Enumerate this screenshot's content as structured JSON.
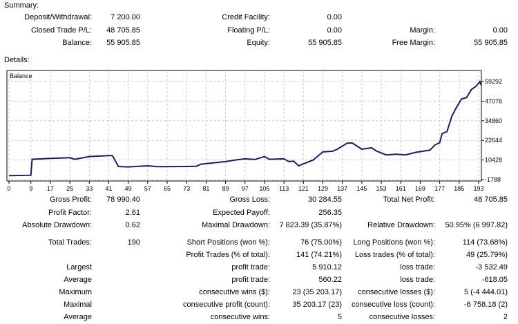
{
  "summary": {
    "title": "Summary:",
    "rows": [
      [
        "Deposit/Withdrawal:",
        "7 200.00",
        "Credit Facility:",
        "0.00",
        "",
        ""
      ],
      [
        "Closed Trade P/L:",
        "48 705.85",
        "Floating P/L:",
        "0.00",
        "Margin:",
        "0.00"
      ],
      [
        "Balance:",
        "55 905.85",
        "Equity:",
        "55 905.85",
        "Free Margin:",
        "55 905.85"
      ]
    ]
  },
  "details": {
    "title": "Details:",
    "rows": [
      [
        "Gross Profit:",
        "78 990.40",
        "Gross Loss:",
        "30 284.55",
        "Total Net Profit:",
        "48 705.85"
      ],
      [
        "Profit Factor:",
        "2.61",
        "Expected Payoff:",
        "256.35",
        "",
        ""
      ],
      [
        "Absolute Drawdown:",
        "0.62",
        "Maximal Drawdown:",
        "7 823.39 (35.87%)",
        "Relative Drawdown:",
        "50.95% (6 997.82)"
      ],
      [
        "Total Trades:",
        "190",
        "Short Positions (won %):",
        "76 (75.00%)",
        "Long Positions (won %):",
        "114 (73.68%)"
      ],
      [
        "",
        "",
        "Profit Trades (% of total):",
        "141 (74.21%)",
        "Loss trades (% of total):",
        "49 (25.79%)"
      ],
      [
        "Largest",
        "",
        "profit trade:",
        "5 910.12",
        "loss trade:",
        "-3 532.49"
      ],
      [
        "Average",
        "",
        "profit trade:",
        "560.22",
        "loss trade:",
        "-618.05"
      ],
      [
        "Maximum",
        "",
        "consecutive wins ($):",
        "23 (35 203.17)",
        "consecutive losses ($):",
        "5 (-4 444.01)"
      ],
      [
        "Maximal",
        "",
        "consecutive profit (count):",
        "35 203.17 (23)",
        "consecutive loss (count):",
        "-6 758.18 (2)"
      ],
      [
        "Average",
        "",
        "consecutive wins:",
        "5",
        "consecutive losses:",
        "2"
      ]
    ]
  },
  "chart_data": {
    "type": "line",
    "title": "Balance",
    "series": [
      {
        "name": "Balance",
        "color": "#1a1a66",
        "x": [
          0,
          9,
          9.5,
          17,
          25,
          27,
          33,
          41,
          42.5,
          45,
          49,
          57,
          61,
          73,
          77,
          79,
          89,
          93,
          97,
          101,
          105,
          107,
          113,
          115,
          117,
          119,
          125,
          129,
          133,
          135,
          139,
          141,
          145,
          149,
          151,
          155,
          159,
          163,
          167,
          173,
          175,
          177,
          178,
          180,
          182,
          184,
          186,
          188,
          190,
          192,
          193.5,
          194
        ],
        "y": [
          660,
          940,
          10860,
          11430,
          11860,
          10860,
          12580,
          13160,
          13160,
          6400,
          6120,
          6830,
          6260,
          6400,
          6550,
          7840,
          9420,
          10430,
          11140,
          10710,
          12580,
          10860,
          11140,
          9420,
          9700,
          6830,
          10430,
          15450,
          15880,
          17180,
          20920,
          21060,
          17180,
          18040,
          16030,
          13590,
          14020,
          13590,
          15170,
          16600,
          19770,
          21200,
          26950,
          28100,
          37730,
          43470,
          48500,
          49220,
          54250,
          56400,
          59290,
          57130
        ]
      }
    ],
    "xticks": [
      0,
      9,
      17,
      25,
      33,
      41,
      49,
      57,
      65,
      73,
      81,
      89,
      97,
      105,
      113,
      121,
      129,
      137,
      145,
      153,
      161,
      169,
      177,
      185,
      193
    ],
    "xtick_labels": [
      "0",
      "9",
      "17",
      "25",
      "33",
      "41",
      "49",
      "57",
      "65",
      "73",
      "81",
      "89",
      "97",
      "105",
      "113",
      "121",
      "129",
      "137",
      "145",
      "153",
      "161",
      "169",
      "177",
      "185",
      "193"
    ],
    "yticks": [
      -1788,
      10428,
      22644,
      34860,
      47076,
      59292
    ],
    "ytick_labels": [
      "-1788",
      "10428",
      "22644",
      "34860",
      "47076",
      "59292"
    ],
    "xlim": [
      0,
      194
    ],
    "ylim": [
      -2300,
      63000
    ],
    "grid": true
  }
}
